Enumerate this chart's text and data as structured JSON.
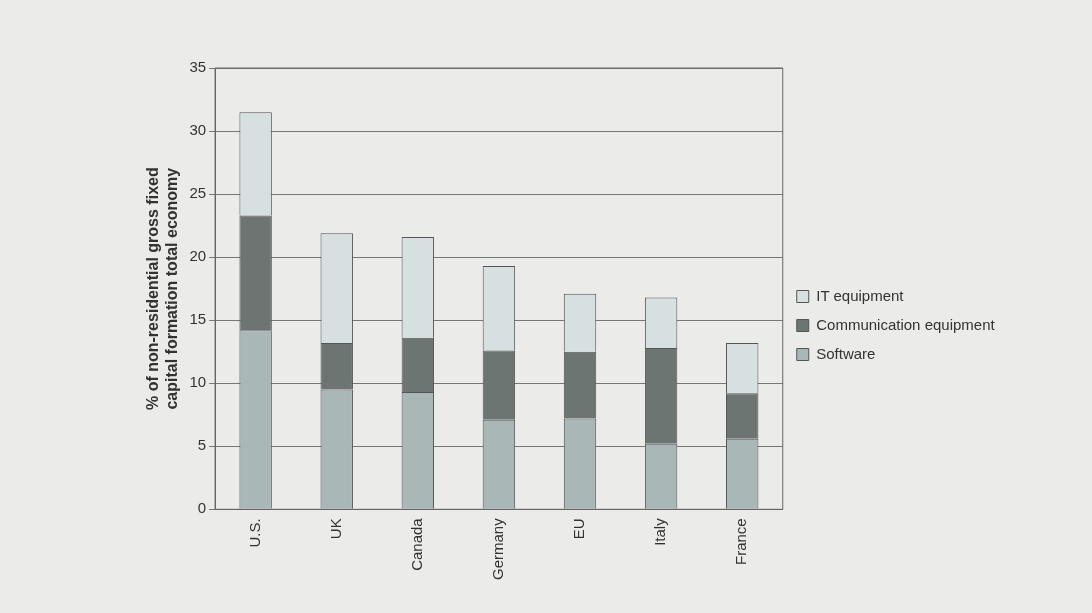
{
  "chart_data": {
    "type": "bar",
    "stacked": true,
    "ylabel": "% of non-residential gross fixed\ncapital formation total economy",
    "categories": [
      "U.S.",
      "UK",
      "Canada",
      "Germany",
      "EU",
      "Italy",
      "France"
    ],
    "series": [
      {
        "name": "Software",
        "color": "#a9b7b7",
        "values": [
          14.2,
          9.5,
          9.3,
          7.1,
          7.2,
          5.2,
          5.6
        ]
      },
      {
        "name": "Communication equipment",
        "color": "#6c7572",
        "values": [
          9.1,
          3.7,
          4.3,
          5.5,
          5.3,
          7.6,
          3.6
        ]
      },
      {
        "name": "IT equipment",
        "color": "#d6e0e0",
        "values": [
          8.2,
          8.7,
          8.0,
          6.7,
          4.6,
          4.0,
          4.0
        ]
      }
    ],
    "ylim": [
      0,
      35
    ],
    "yticks": [
      0,
      5,
      10,
      15,
      20,
      25,
      30,
      35
    ],
    "grid": "y",
    "legend": "right"
  }
}
